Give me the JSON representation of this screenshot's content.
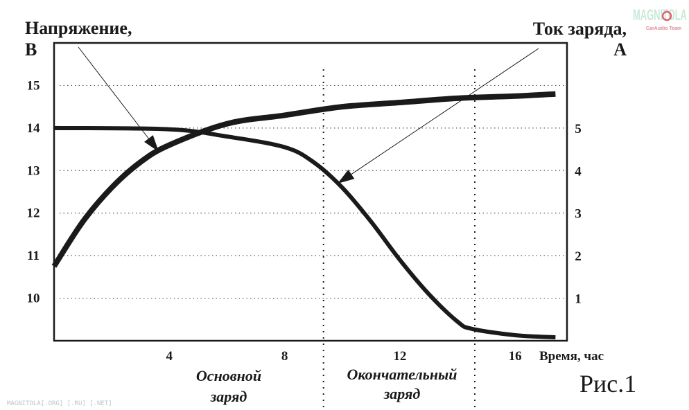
{
  "chart_data": {
    "type": "line",
    "title": "",
    "figure_label": "Рис.1",
    "left_axis": {
      "label": "Напряжение, В",
      "label_lines": [
        "Напряжение,",
        "В"
      ],
      "ticks": [
        10,
        11,
        12,
        13,
        14,
        15
      ],
      "range": [
        9,
        16
      ]
    },
    "right_axis": {
      "label": "Ток заряда, А",
      "label_lines": [
        "Ток заряда,",
        "А"
      ],
      "ticks": [
        1,
        2,
        3,
        4,
        5
      ],
      "range": [
        0,
        7
      ]
    },
    "x_axis": {
      "label": "Время, час",
      "ticks": [
        4,
        8,
        12,
        16
      ],
      "range": [
        0,
        17.8
      ]
    },
    "grid": "horizontal dotted",
    "phase_boundaries": [
      9.35,
      14.6
    ],
    "phases": [
      {
        "label_lines": [
          "Основной",
          "заряд"
        ]
      },
      {
        "label_lines": [
          "Окончательный",
          "заряд"
        ]
      }
    ],
    "series": [
      {
        "axis": "left",
        "x": [
          0,
          1,
          2,
          3,
          4,
          6,
          8,
          10,
          12,
          14,
          16,
          17.4
        ],
        "values": [
          10.75,
          11.8,
          12.6,
          13.2,
          13.6,
          14.1,
          14.3,
          14.5,
          14.6,
          14.7,
          14.75,
          14.8
        ]
      },
      {
        "axis": "right",
        "x": [
          0,
          4,
          6,
          8,
          9,
          10,
          11,
          12,
          13,
          14,
          14.5,
          16,
          17.4
        ],
        "values": [
          5.0,
          4.97,
          4.8,
          4.55,
          4.2,
          3.6,
          2.8,
          1.9,
          1.1,
          0.45,
          0.28,
          0.13,
          0.08
        ]
      }
    ],
    "colors": {
      "lines": "#1a1a1a",
      "grid": "#555555"
    }
  },
  "watermark": {
    "logo": "MAGNITOLA CarAudio Team",
    "footer": "MAGNITOLA[.ORG] [.RU] [.NET]"
  }
}
